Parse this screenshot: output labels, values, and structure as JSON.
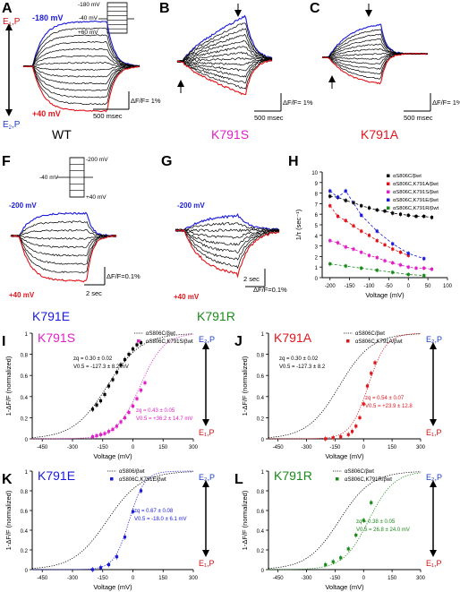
{
  "colors": {
    "black": "#000000",
    "blue": "#1a1adb",
    "red": "#e0151b",
    "magenta": "#e020c8",
    "green": "#1a8a1a",
    "ep_red": "#d01515",
    "ep_blue": "#1c3fbf"
  },
  "states": {
    "e1": "E",
    "e2": "E",
    "sub1": "1",
    "sub2": "2",
    "p": "P",
    "comma": ","
  },
  "panels": {
    "A": {
      "letter": "A",
      "v_top": "-180 mV",
      "v_bottom": "+40 mV",
      "scale_y": "ΔF/F= 1%",
      "scale_x": "500 msec",
      "name": "WT",
      "protocol": [
        "-180 mV",
        "-40 mV",
        "+60 mV"
      ]
    },
    "B": {
      "letter": "B",
      "scale_y": "ΔF/F= 1%",
      "scale_x": "500 msec",
      "name": "K791S"
    },
    "C": {
      "letter": "C",
      "scale_y": "ΔF/F= 1%",
      "scale_x": "500 msec",
      "name": "K791A"
    },
    "F": {
      "letter": "F",
      "v_top": "-200 mV",
      "v_bottom": "+40 mV",
      "scale_y": "ΔF/F=0.1%",
      "scale_x": "2 sec",
      "name": "K791E",
      "protocol": [
        "-200 mV",
        "-40 mV",
        "+40 mV"
      ]
    },
    "G": {
      "letter": "G",
      "v_top": "-200 mV",
      "v_bottom": "+40 mV",
      "scale_y": "ΔF/F=0.1%",
      "scale_x": "2 sec",
      "name": "K791R"
    },
    "H": {
      "letter": "H",
      "ylabel": "1/τ (sec⁻¹)",
      "xlabel": "Voltage (mV)",
      "legend": [
        "αS806C/βwt",
        "αS806C,K791A/βwt",
        "αS806C,K791S/βwt",
        "αS806C,K791E/βwt",
        "αS806C,K791R/βwt"
      ]
    },
    "I": {
      "letter": "I",
      "name": "K791S",
      "legend": [
        "αS806C/βwt",
        "αS806C,K791S/βwt"
      ],
      "fit_wt": [
        "zq = 0.30 ± 0.02",
        "V0.5 = -127.3 ± 8.2 mV"
      ],
      "fit_mut": [
        "zq = 0.43 ± 0.05",
        "V0.5 = +36.2 ± 14.7 mV"
      ]
    },
    "J": {
      "letter": "J",
      "name": "K791A",
      "legend": [
        "αS806C/βwt",
        "αS806C,K791A/βwt"
      ],
      "fit_wt": [
        "zq = 0.30 ± 0.02",
        "V0.5 = -127.3 ± 8.2"
      ],
      "fit_mut": [
        "zq = 0.54 ± 0.07",
        "V0.5 = +23.9 ± 12.8"
      ]
    },
    "K": {
      "letter": "K",
      "name": "K791E",
      "legend": [
        "αS806/βwt",
        "αS806C,K791E/βwt"
      ],
      "fit_mut": [
        "zq = 0.67 ± 0.08",
        "V0.5 = -18.0 ± 6.1 mV"
      ]
    },
    "L": {
      "letter": "L",
      "name": "K791R",
      "legend": [
        "αS806C/βwt",
        "αS806C,K791R/βwt"
      ],
      "fit_mut": [
        "zq = 0.38 ± 0.05",
        "V0.5 = 26.8 ± 24.0 mV"
      ]
    },
    "boltz_axes": {
      "ylabel": "1-ΔF/F (normalized)",
      "xlabel": "Voltage (mV)"
    }
  },
  "chart_data": [
    {
      "panel": "H",
      "type": "scatter",
      "xlabel": "Voltage (mV)",
      "ylabel": "1/τ (sec⁻¹)",
      "xlim": [
        -220,
        100
      ],
      "ylim": [
        0,
        10
      ],
      "xticks": [
        -200,
        -150,
        -100,
        -50,
        0,
        50,
        100
      ],
      "yticks": [
        0,
        1,
        2,
        3,
        4,
        5,
        6,
        7,
        8,
        9,
        10
      ],
      "series": [
        {
          "name": "αS806C/βwt",
          "color": "#000000",
          "x": [
            -200,
            -180,
            -160,
            -140,
            -120,
            -100,
            -80,
            -60,
            -40,
            -20,
            0,
            20,
            40,
            60
          ],
          "y": [
            7.7,
            7.6,
            7.3,
            7.1,
            6.8,
            6.6,
            6.4,
            6.3,
            6.1,
            6.0,
            5.9,
            5.8,
            5.8,
            5.7
          ]
        },
        {
          "name": "αS806C,K791A/βwt",
          "color": "#e0151b",
          "x": [
            -200,
            -180,
            -160,
            -140,
            -120,
            -100,
            -80,
            -60,
            -40,
            -20,
            0
          ],
          "y": [
            6.8,
            5.8,
            5.4,
            4.9,
            4.4,
            4.0,
            3.5,
            3.1,
            2.7,
            2.4,
            2.1
          ]
        },
        {
          "name": "αS806C,K791S/βwt",
          "color": "#e020c8",
          "x": [
            -200,
            -180,
            -160,
            -140,
            -120,
            -100,
            -80,
            -60,
            -40,
            -20,
            0,
            20,
            40,
            60
          ],
          "y": [
            3.5,
            3.3,
            2.9,
            2.7,
            2.4,
            2.1,
            1.9,
            1.6,
            1.4,
            1.2,
            1.0,
            0.9,
            0.9,
            0.8
          ]
        },
        {
          "name": "αS806C,K791E/βwt",
          "color": "#1a1adb",
          "x": [
            -200,
            -180,
            -160,
            -120,
            -80,
            -40,
            0,
            40
          ],
          "y": [
            8.2,
            7.6,
            8.2,
            5.9,
            4.4,
            3.2,
            2.3,
            1.8
          ]
        },
        {
          "name": "αS806C,K791R/βwt",
          "color": "#1a8a1a",
          "x": [
            -200,
            -160,
            -120,
            -80,
            -40,
            0,
            40
          ],
          "y": [
            1.3,
            1.1,
            0.9,
            0.7,
            0.5,
            0.3,
            0.2
          ]
        }
      ]
    },
    {
      "panel": "I",
      "type": "scatter",
      "xlim": [
        -500,
        300
      ],
      "ylim": [
        0,
        1.0
      ],
      "series": [
        {
          "name": "αS806C/βwt",
          "color": "#000000",
          "x": [
            -200,
            -180,
            -160,
            -140,
            -120,
            -100,
            -80,
            -60,
            -40,
            -20,
            0,
            20,
            40
          ],
          "y": [
            0.28,
            0.32,
            0.36,
            0.42,
            0.5,
            0.56,
            0.63,
            0.7,
            0.75,
            0.8,
            0.85,
            0.89,
            0.91
          ]
        },
        {
          "name": "αS806C,K791S/βwt",
          "color": "#e020c8",
          "x": [
            -200,
            -180,
            -160,
            -140,
            -120,
            -100,
            -80,
            -60,
            -40,
            -20,
            0,
            20,
            40,
            60
          ],
          "y": [
            0.02,
            0.03,
            0.04,
            0.05,
            0.07,
            0.09,
            0.12,
            0.16,
            0.2,
            0.25,
            0.31,
            0.38,
            0.46,
            0.53
          ]
        }
      ]
    },
    {
      "panel": "J",
      "type": "scatter",
      "xlim": [
        -500,
        300
      ],
      "ylim": [
        0,
        1.0
      ],
      "series": [
        {
          "name": "αS806C,K791A/βwt",
          "color": "#e0151b",
          "x": [
            -200,
            -160,
            -120,
            -80,
            -60,
            -40,
            -20,
            0,
            20,
            40,
            60
          ],
          "y": [
            0.0,
            0.01,
            0.02,
            0.04,
            0.07,
            0.12,
            0.2,
            0.33,
            0.5,
            0.62,
            0.72
          ]
        }
      ]
    },
    {
      "panel": "K",
      "type": "scatter",
      "xlim": [
        -500,
        300
      ],
      "ylim": [
        0,
        1.0
      ],
      "series": [
        {
          "name": "αS806C,K791E/βwt",
          "color": "#1a1adb",
          "x": [
            -200,
            -160,
            -120,
            -80,
            -40,
            0,
            40
          ],
          "y": [
            0.0,
            0.02,
            0.05,
            0.13,
            0.33,
            0.59,
            0.8
          ]
        }
      ]
    },
    {
      "panel": "L",
      "type": "scatter",
      "xlim": [
        -500,
        300
      ],
      "ylim": [
        0,
        1.0
      ],
      "series": [
        {
          "name": "αS806C,K791R/βwt",
          "color": "#1a8a1a",
          "x": [
            -200,
            -160,
            -120,
            -80,
            -40,
            0,
            40
          ],
          "y": [
            0.05,
            0.08,
            0.12,
            0.21,
            0.35,
            0.5,
            0.68
          ]
        }
      ]
    }
  ]
}
